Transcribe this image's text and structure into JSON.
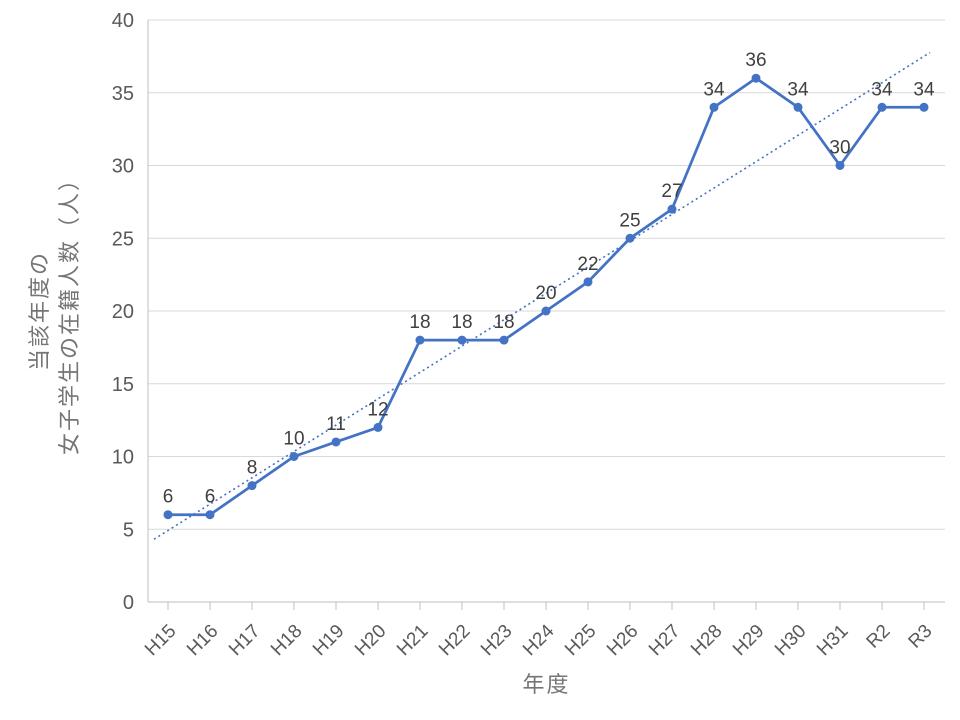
{
  "chart_data": {
    "type": "line",
    "title": "",
    "categories": [
      "H15",
      "H16",
      "H17",
      "H18",
      "H19",
      "H20",
      "H21",
      "H22",
      "H23",
      "H24",
      "H25",
      "H26",
      "H27",
      "H28",
      "H29",
      "H30",
      "H31",
      "R2",
      "R3"
    ],
    "values": [
      6,
      6,
      8,
      10,
      11,
      12,
      18,
      18,
      18,
      20,
      22,
      25,
      27,
      34,
      36,
      34,
      30,
      34,
      34
    ],
    "data_labels_shown": true,
    "xlabel": "年度",
    "ylabel_lines": [
      "当該年度の",
      "女子学生の在籍人数（人）"
    ],
    "ylim": [
      0,
      40
    ],
    "yticks": [
      0,
      5,
      10,
      15,
      20,
      25,
      30,
      35,
      40
    ],
    "grid": "horizontal",
    "legend": "none",
    "trendline": {
      "type": "linear",
      "style": "dotted"
    },
    "colors": {
      "line": "#4472C4",
      "marker": "#4472C4",
      "trendline": "#4472C4",
      "data_label": "#404040",
      "tick_label": "#595959",
      "axis_title": "#757575",
      "gridline": "#D9D9D9",
      "axis_line": "#BFBFBF",
      "background": "#FFFFFF"
    }
  }
}
